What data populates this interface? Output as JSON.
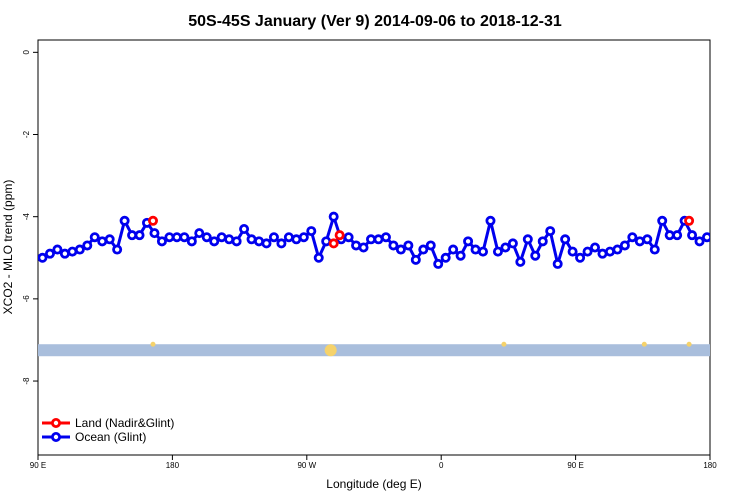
{
  "chart_data": {
    "type": "line",
    "title": "50S-45S January (Ver 9)   2014-09-06 to 2018-12-31",
    "xlabel": "Longitude (deg E)",
    "ylabel": "XCO2 - MLO trend (ppm)",
    "x_ticks": [
      {
        "value": 90,
        "label": "90 E"
      },
      {
        "value": 180,
        "label": "180"
      },
      {
        "value": 270,
        "label": "90 W"
      },
      {
        "value": 360,
        "label": "0"
      },
      {
        "value": 450,
        "label": "90 E"
      },
      {
        "value": 540,
        "label": "180"
      }
    ],
    "y_ticks": [
      0,
      -2,
      -4,
      -6,
      -8
    ],
    "xlim": [
      90,
      540
    ],
    "ylim": [
      -9.8,
      0.3
    ],
    "legend_position": "bottom-left",
    "colors": {
      "land": "#ff0000",
      "ocean": "#0000ee",
      "band": "#a9bedc",
      "band_marker": "#f5d26b"
    },
    "series": [
      {
        "name": "Land (Nadir&Glint)",
        "color": "#ff0000",
        "x": [
          167,
          288,
          292,
          526
        ],
        "y": [
          -4.1,
          -4.65,
          -4.45,
          -4.1
        ]
      },
      {
        "name": "Ocean (Glint)",
        "color": "#0000ee",
        "x": [
          93,
          98,
          103,
          108,
          113,
          118,
          123,
          128,
          133,
          138,
          143,
          148,
          153,
          158,
          163,
          168,
          173,
          178,
          183,
          188,
          193,
          198,
          203,
          208,
          213,
          218,
          223,
          228,
          233,
          238,
          243,
          248,
          253,
          258,
          263,
          268,
          273,
          278,
          283,
          288,
          293,
          298,
          303,
          308,
          313,
          318,
          323,
          328,
          333,
          338,
          343,
          348,
          353,
          358,
          363,
          368,
          373,
          378,
          383,
          388,
          393,
          398,
          403,
          408,
          413,
          418,
          423,
          428,
          433,
          438,
          443,
          448,
          453,
          458,
          463,
          468,
          473,
          478,
          483,
          488,
          493,
          498,
          503,
          508,
          513,
          518,
          523,
          528,
          533,
          538
        ],
        "y": [
          -5.0,
          -4.9,
          -4.8,
          -4.9,
          -4.85,
          -4.8,
          -4.7,
          -4.5,
          -4.6,
          -4.55,
          -4.8,
          -4.1,
          -4.45,
          -4.45,
          -4.15,
          -4.4,
          -4.6,
          -4.5,
          -4.5,
          -4.5,
          -4.6,
          -4.4,
          -4.5,
          -4.6,
          -4.5,
          -4.55,
          -4.6,
          -4.3,
          -4.55,
          -4.6,
          -4.65,
          -4.5,
          -4.65,
          -4.5,
          -4.55,
          -4.5,
          -4.35,
          -5.0,
          -4.6,
          -4.0,
          -4.55,
          -4.5,
          -4.7,
          -4.75,
          -4.55,
          -4.55,
          -4.5,
          -4.7,
          -4.8,
          -4.7,
          -5.05,
          -4.8,
          -4.7,
          -5.15,
          -5.0,
          -4.8,
          -4.95,
          -4.6,
          -4.8,
          -4.85,
          -4.1,
          -4.85,
          -4.75,
          -4.65,
          -5.1,
          -4.55,
          -4.95,
          -4.6,
          -4.35,
          -5.15,
          -4.55,
          -4.85,
          -5.0,
          -4.85,
          -4.75,
          -4.9,
          -4.85,
          -4.8,
          -4.7,
          -4.5,
          -4.6,
          -4.55,
          -4.8,
          -4.1,
          -4.45,
          -4.45,
          -4.1,
          -4.45,
          -4.6,
          -4.5
        ]
      }
    ],
    "land_coverage_band": {
      "y": -7.25,
      "markers_x": [
        167,
        286,
        402,
        496,
        526
      ]
    }
  }
}
